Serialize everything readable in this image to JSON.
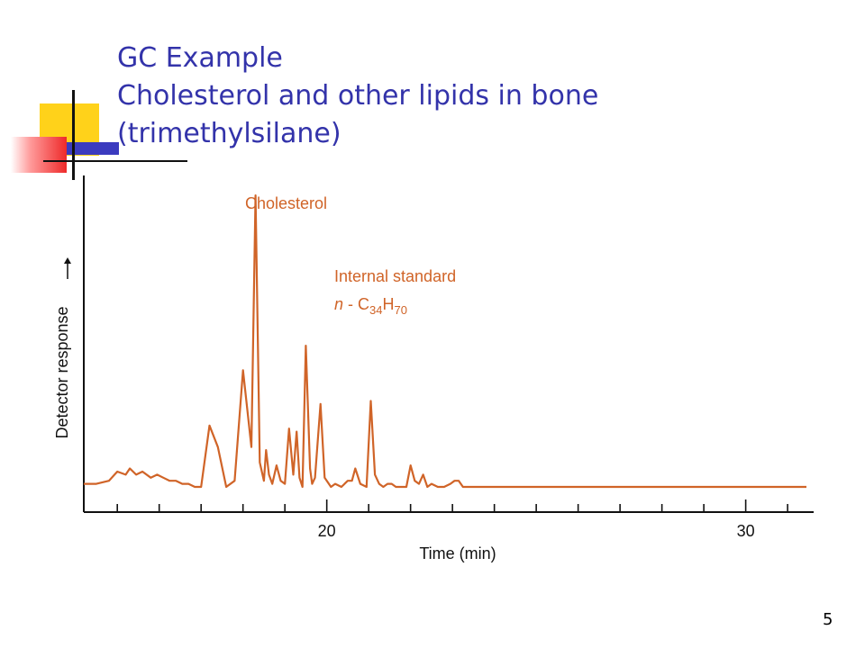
{
  "slide": {
    "title_line1": "GC Example",
    "title_line2": "Cholesterol and other lipids in bone",
    "title_line3": "(trimethylsilane)",
    "page_number": "5",
    "title_color": "#3333aa"
  },
  "chart_data": {
    "type": "line",
    "title": "",
    "xlabel": "Time (min)",
    "ylabel": "Detector response",
    "xlim": [
      14.2,
      31.6
    ],
    "ylim": [
      0,
      100
    ],
    "x_ticks_labeled": [
      20,
      30
    ],
    "x_tick_values": [
      15,
      16,
      17,
      18,
      19,
      20,
      21,
      22,
      23,
      24,
      25,
      26,
      27,
      28,
      29,
      30,
      31
    ],
    "grid": false,
    "series_color": "#d06428",
    "series": [
      {
        "x": [
          14.2,
          14.5,
          14.8,
          15.0,
          15.2,
          15.3,
          15.45,
          15.6,
          15.8,
          15.95,
          16.1,
          16.25,
          16.4,
          16.55,
          16.7,
          16.85,
          17.0,
          17.2,
          17.4,
          17.6,
          17.8,
          18.0,
          18.2,
          18.3,
          18.4,
          18.5,
          18.55,
          18.62,
          18.7,
          18.8,
          18.9,
          19.0,
          19.1,
          19.2,
          19.28,
          19.35,
          19.42,
          19.5,
          19.6,
          19.65,
          19.72,
          19.85,
          19.95,
          20.1,
          20.2,
          20.35,
          20.5,
          20.6,
          20.68,
          20.8,
          20.95,
          21.05,
          21.15,
          21.25,
          21.35,
          21.45,
          21.55,
          21.65,
          21.8,
          21.9,
          22.0,
          22.1,
          22.2,
          22.3,
          22.4,
          22.5,
          22.65,
          22.8,
          22.95,
          23.05,
          23.15,
          23.25,
          23.4,
          23.55,
          23.7,
          23.85,
          23.95,
          24.05,
          24.15,
          24.3,
          24.45,
          24.6,
          24.8,
          25.0,
          25.2,
          25.35,
          25.5,
          25.7,
          25.9,
          26.1,
          26.3,
          26.45,
          26.6,
          26.75,
          26.9,
          27.05,
          27.2,
          27.35,
          27.5,
          27.65,
          27.8,
          27.9,
          28.0,
          28.1,
          28.2,
          28.3,
          28.45,
          28.6,
          28.75,
          28.9,
          29.05,
          29.2,
          29.35,
          29.5,
          29.65,
          29.8,
          29.95,
          30.1,
          30.3,
          30.5,
          30.7,
          30.9,
          31.1,
          31.3,
          31.45
        ],
        "y": [
          1,
          1,
          2,
          5,
          4,
          6,
          4,
          5,
          3,
          4,
          3,
          2,
          2,
          1,
          1,
          0,
          0,
          20,
          13,
          0,
          2,
          38,
          13,
          95,
          8,
          2,
          12,
          4,
          1,
          7,
          2,
          1,
          19,
          4,
          18,
          3,
          0,
          46,
          6,
          1,
          3,
          27,
          3,
          0,
          1,
          0,
          2,
          2,
          6,
          1,
          0,
          28,
          4,
          1,
          0,
          1,
          1,
          0,
          0,
          0,
          7,
          2,
          1,
          4,
          0,
          1,
          0,
          0,
          1,
          2,
          2,
          0,
          0,
          0,
          0,
          0,
          0,
          0,
          0,
          0,
          0,
          0,
          0,
          0,
          0,
          0,
          0,
          0,
          0,
          0,
          0,
          0,
          0,
          0,
          0,
          0,
          0,
          0,
          0,
          0,
          0,
          0,
          0,
          0,
          0,
          0,
          0,
          0,
          0,
          0,
          0,
          0,
          0,
          0,
          0,
          0,
          0,
          0,
          0,
          0,
          0,
          0,
          0,
          0,
          0
        ]
      }
    ],
    "annotations": [
      {
        "text": "Cholesterol",
        "x": 19.0,
        "y": 95
      },
      {
        "text": "Internal standard",
        "x": 21.2,
        "y": 72
      },
      {
        "text": "n - C34H70",
        "x": 21.2,
        "y": 60
      }
    ]
  }
}
